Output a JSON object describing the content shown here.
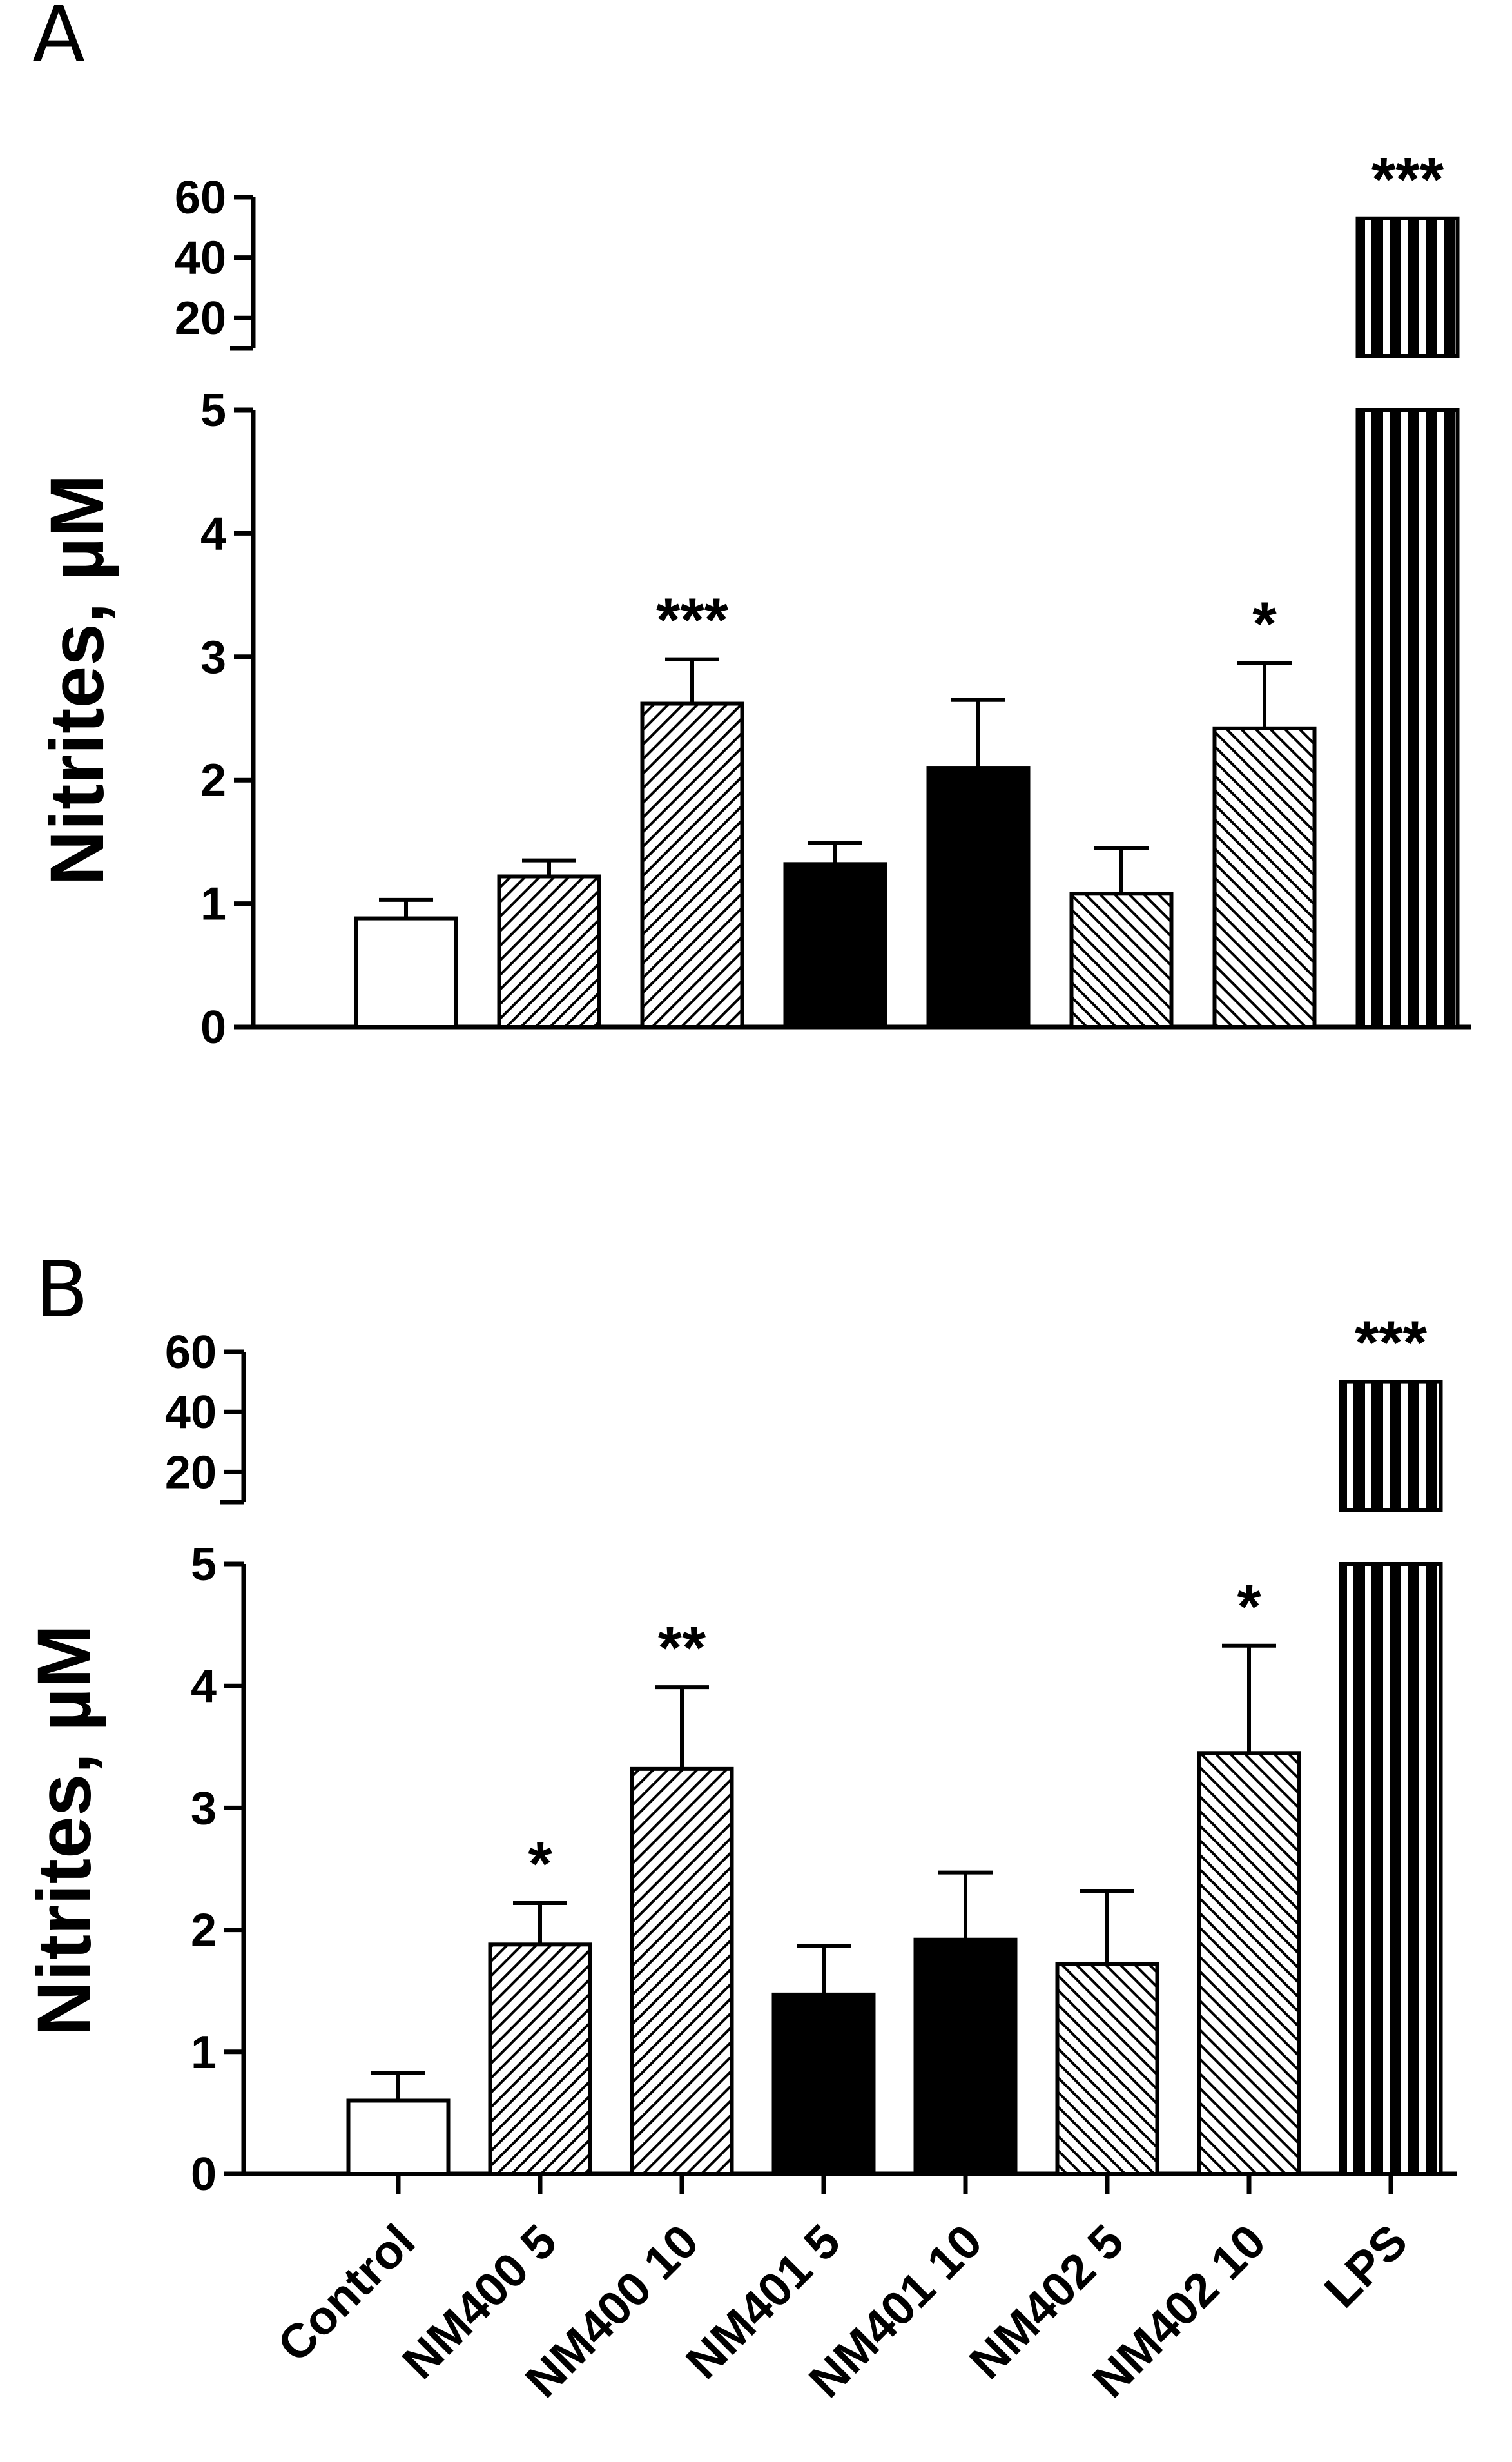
{
  "chart_data": [
    {
      "type": "bar",
      "panel": "A",
      "ylabel": "Nitrites, µM",
      "categories": [
        "Control",
        "NM400 5",
        "NM400 10",
        "NM401 5",
        "NM401 10",
        "NM402 5",
        "NM402 10",
        "LPS"
      ],
      "values": [
        0.88,
        1.22,
        2.62,
        1.32,
        2.1,
        1.08,
        2.42,
        53
      ],
      "errors": [
        0.15,
        0.13,
        0.36,
        0.17,
        0.55,
        0.37,
        0.53,
        0
      ],
      "significance": [
        "",
        "",
        "***",
        "",
        "",
        "",
        "*",
        "***"
      ],
      "fills": [
        "empty",
        "hatch-fine",
        "hatch-fine",
        "solid",
        "solid",
        "hatch-back",
        "hatch-back",
        "vertical-stripes"
      ],
      "ylim_lower": [
        0,
        5
      ],
      "ylim_upper": [
        10,
        60
      ],
      "lower_ticks": [
        "0",
        "1",
        "2",
        "3",
        "4",
        "5"
      ],
      "upper_ticks": [
        "20",
        "40",
        "60"
      ]
    },
    {
      "type": "bar",
      "panel": "B",
      "ylabel": "Nitrites, µM",
      "categories": [
        "Control",
        "NM400 5",
        "NM400 10",
        "NM401 5",
        "NM401 10",
        "NM402 5",
        "NM402 10",
        "LPS"
      ],
      "values": [
        0.6,
        1.88,
        3.32,
        1.47,
        1.92,
        1.72,
        3.45,
        50
      ],
      "errors": [
        0.23,
        0.34,
        0.67,
        0.4,
        0.55,
        0.6,
        0.88,
        0
      ],
      "significance": [
        "",
        "*",
        "**",
        "",
        "",
        "",
        "*",
        "***"
      ],
      "fills": [
        "empty",
        "hatch-fine",
        "hatch-fine",
        "solid",
        "solid",
        "hatch-back",
        "hatch-back",
        "vertical-stripes"
      ],
      "ylim_lower": [
        0,
        5
      ],
      "ylim_upper": [
        10,
        60
      ],
      "lower_ticks": [
        "0",
        "1",
        "2",
        "3",
        "4",
        "5"
      ],
      "upper_ticks": [
        "20",
        "40",
        "60"
      ]
    }
  ]
}
